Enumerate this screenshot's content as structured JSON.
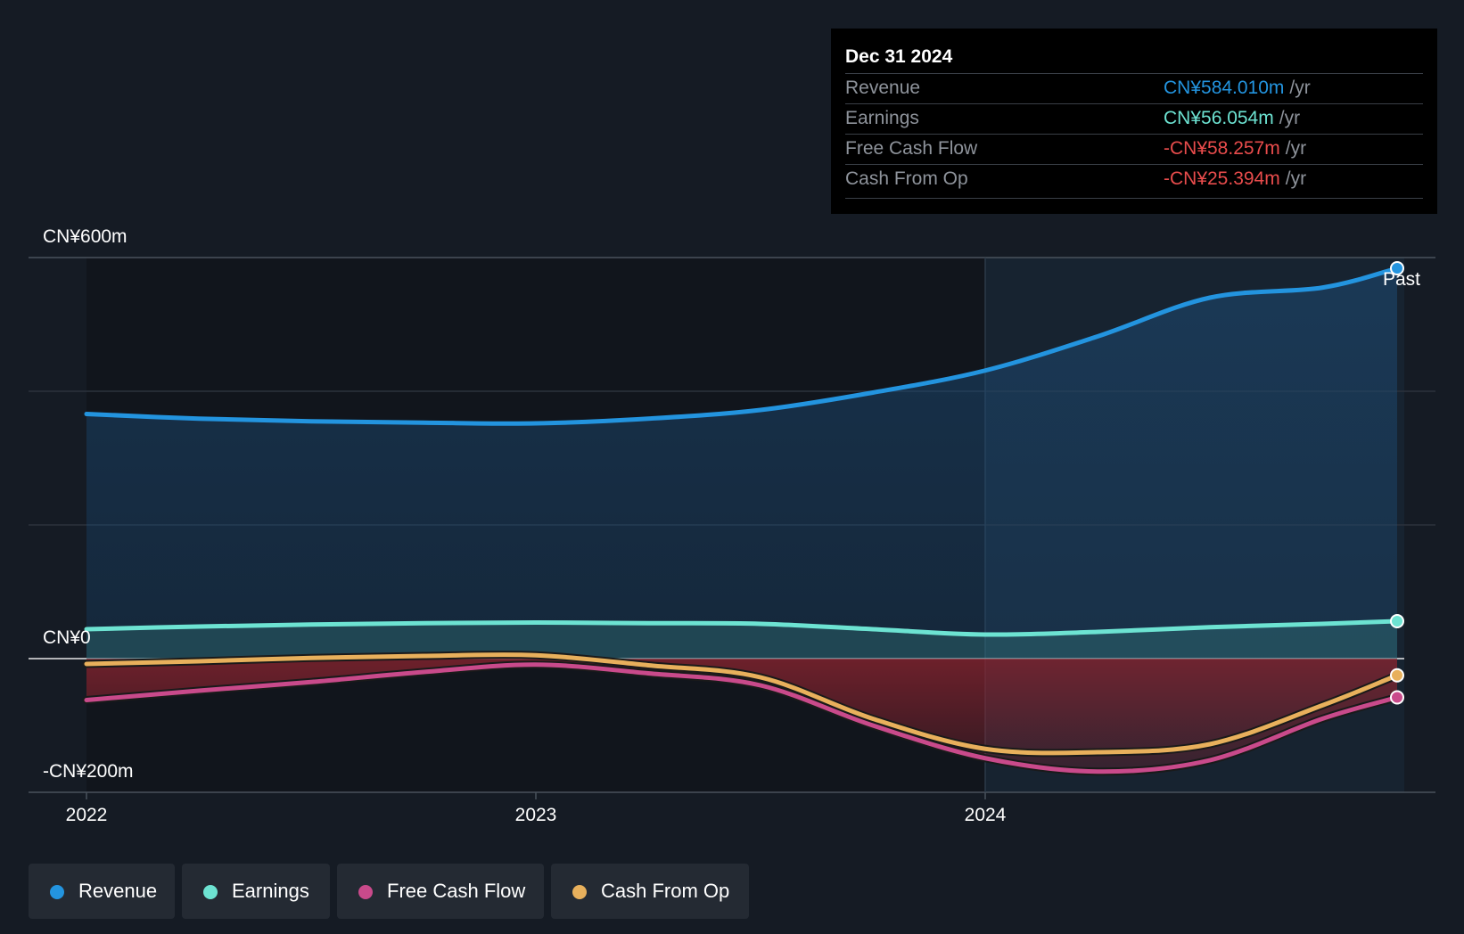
{
  "chart_data": {
    "type": "area",
    "x_ticks": [
      "2022",
      "2023",
      "2024"
    ],
    "y_labels": [
      "CN¥600m",
      "CN¥0",
      "-CN¥200m"
    ],
    "ylim": [
      -200,
      600
    ],
    "grid": true,
    "past_label": "Past",
    "series": [
      {
        "name": "Revenue",
        "color": "#2394df",
        "x": [
          "2022-01",
          "2022-04",
          "2022-07",
          "2022-10",
          "2023-01",
          "2023-04",
          "2023-07",
          "2023-10",
          "2024-01",
          "2024-04",
          "2024-07",
          "2024-10",
          "2024-12"
        ],
        "values": [
          366,
          359,
          355,
          353,
          352,
          359,
          372,
          398,
          431,
          482,
          540,
          555,
          584
        ]
      },
      {
        "name": "Earnings",
        "color": "#6de3d2",
        "x": [
          "2022-01",
          "2022-04",
          "2022-07",
          "2022-10",
          "2023-01",
          "2023-04",
          "2023-07",
          "2023-10",
          "2024-01",
          "2024-04",
          "2024-07",
          "2024-10",
          "2024-12"
        ],
        "values": [
          44,
          48,
          51,
          53,
          54,
          53,
          52,
          44,
          36,
          40,
          47,
          52,
          56
        ]
      },
      {
        "name": "Free Cash Flow",
        "color": "#c94a8b",
        "x": [
          "2022-01",
          "2022-04",
          "2022-07",
          "2022-10",
          "2023-01",
          "2023-04",
          "2023-07",
          "2023-10",
          "2024-01",
          "2024-04",
          "2024-07",
          "2024-10",
          "2024-12"
        ],
        "values": [
          -62,
          -48,
          -35,
          -20,
          -9,
          -22,
          -40,
          -100,
          -149,
          -169,
          -152,
          -90,
          -58
        ]
      },
      {
        "name": "Cash From Op",
        "color": "#e8b05c",
        "x": [
          "2022-01",
          "2022-04",
          "2022-07",
          "2022-10",
          "2023-01",
          "2023-04",
          "2023-07",
          "2023-10",
          "2024-01",
          "2024-04",
          "2024-07",
          "2024-10",
          "2024-12"
        ],
        "values": [
          -8,
          -4,
          1,
          4,
          5,
          -10,
          -28,
          -90,
          -135,
          -140,
          -128,
          -70,
          -25
        ]
      }
    ]
  },
  "tooltip": {
    "date": "Dec 31 2024",
    "rows": [
      {
        "label": "Revenue",
        "value": "CN¥584.010m",
        "unit": "/yr",
        "color": "#2394df"
      },
      {
        "label": "Earnings",
        "value": "CN¥56.054m",
        "unit": "/yr",
        "color": "#6de3d2"
      },
      {
        "label": "Free Cash Flow",
        "value": "-CN¥58.257m",
        "unit": "/yr",
        "color": "#e84c4c"
      },
      {
        "label": "Cash From Op",
        "value": "-CN¥25.394m",
        "unit": "/yr",
        "color": "#e84c4c"
      }
    ]
  },
  "legend": [
    {
      "label": "Revenue",
      "color": "#2394df"
    },
    {
      "label": "Earnings",
      "color": "#6de3d2"
    },
    {
      "label": "Free Cash Flow",
      "color": "#c94a8b"
    },
    {
      "label": "Cash From Op",
      "color": "#e8b05c"
    }
  ]
}
